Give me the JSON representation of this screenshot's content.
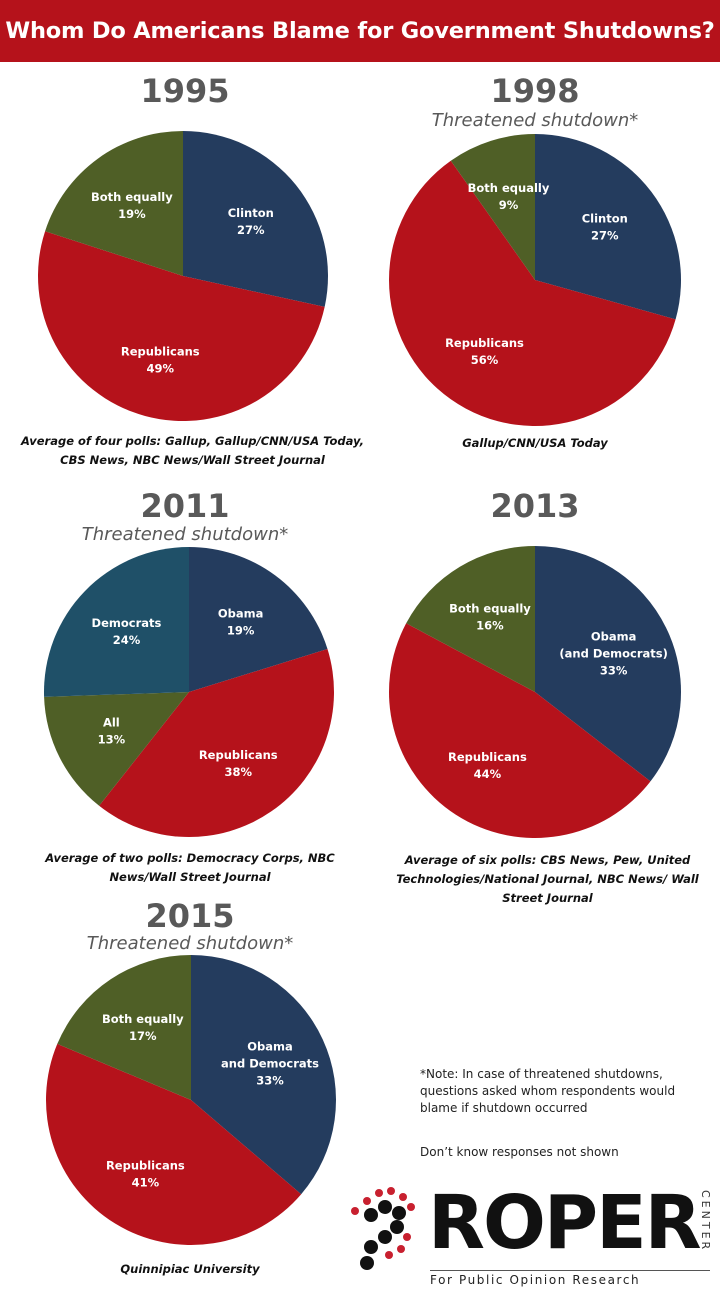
{
  "title": "Whom Do Americans Blame for Government Shutdowns?",
  "chart_data": [
    {
      "type": "pie",
      "title": "1995",
      "subtitle": "",
      "source": "Average of four polls: Gallup, Gallup/CNN/USA Today, CBS News, NBC News/Wall Street Journal",
      "slices": [
        {
          "label": "Clinton",
          "value": 27,
          "display": "27%",
          "color": "#243c5e"
        },
        {
          "label": "Republicans",
          "value": 49,
          "display": "49%",
          "color": "#b5121b"
        },
        {
          "label": "Both equally",
          "value": 19,
          "display": "19%",
          "color": "#4f5f26"
        }
      ]
    },
    {
      "type": "pie",
      "title": "1998",
      "subtitle": "Threatened  shutdown*",
      "source": "Gallup/CNN/USA Today",
      "slices": [
        {
          "label": "Clinton",
          "value": 27,
          "display": "27%",
          "color": "#243c5e"
        },
        {
          "label": "Republicans",
          "value": 56,
          "display": "56%",
          "color": "#b5121b"
        },
        {
          "label": "Both equally",
          "value": 9,
          "display": "9%",
          "color": "#4f5f26"
        }
      ]
    },
    {
      "type": "pie",
      "title": "2011",
      "subtitle": "Threatened  shutdown*",
      "source": "Average of two polls: Democracy Corps, NBC News/Wall Street Journal",
      "slices": [
        {
          "label": "Obama",
          "value": 19,
          "display": "19%",
          "color": "#243c5e"
        },
        {
          "label": "Republicans",
          "value": 38,
          "display": "38%",
          "color": "#b5121b"
        },
        {
          "label": "All",
          "value": 13,
          "display": "13%",
          "color": "#4f5f26"
        },
        {
          "label": "Democrats",
          "value": 24,
          "display": "24%",
          "color": "#1f5068"
        }
      ]
    },
    {
      "type": "pie",
      "title": "2013",
      "subtitle": "",
      "source": "Average of six polls: CBS News, Pew, United Technologies/National Journal, NBC News/ Wall Street Journal",
      "slices": [
        {
          "label": "Obama (and Democrats)",
          "value": 33,
          "display": "33%",
          "color": "#243c5e"
        },
        {
          "label": "Republicans",
          "value": 44,
          "display": "44%",
          "color": "#b5121b"
        },
        {
          "label": "Both equally",
          "value": 16,
          "display": "16%",
          "color": "#4f5f26"
        }
      ]
    },
    {
      "type": "pie",
      "title": "2015",
      "subtitle": "Threatened  shutdown*",
      "source": "Quinnipiac University",
      "slices": [
        {
          "label": "Obama and Democrats",
          "value": 33,
          "display": "33%",
          "color": "#243c5e"
        },
        {
          "label": "Republicans",
          "value": 41,
          "display": "41%",
          "color": "#b5121b"
        },
        {
          "label": "Both equally",
          "value": 17,
          "display": "17%",
          "color": "#4f5f26"
        }
      ]
    }
  ],
  "notes": {
    "threatened": "*Note: In case of threatened shutdowns, questions asked whom respondents would blame if shutdown occurred",
    "dont_know": "Don’t know responses not shown"
  },
  "logo": {
    "name": "ROPER",
    "vertical": "CENTER",
    "tagline": "For Public Opinion Research",
    "dot_colors": [
      "#111111",
      "#c8202f"
    ]
  }
}
